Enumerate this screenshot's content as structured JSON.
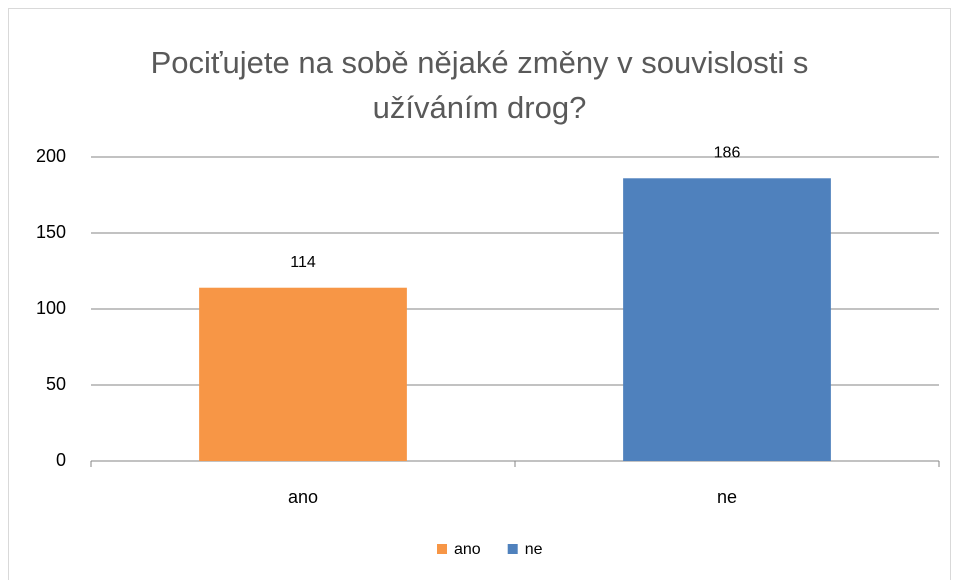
{
  "chart_data": {
    "type": "bar",
    "title": "Pociťujete na sobě nějaké změny v souvislosti s užíváním drog?",
    "categories": [
      "ano",
      "ne"
    ],
    "values": [
      114,
      186
    ],
    "colors": [
      "#f79646",
      "#4f81bd"
    ],
    "ylim": [
      0,
      200
    ],
    "yticks": [
      0,
      50,
      100,
      150,
      200
    ],
    "grid": true,
    "legend": "bottom"
  }
}
